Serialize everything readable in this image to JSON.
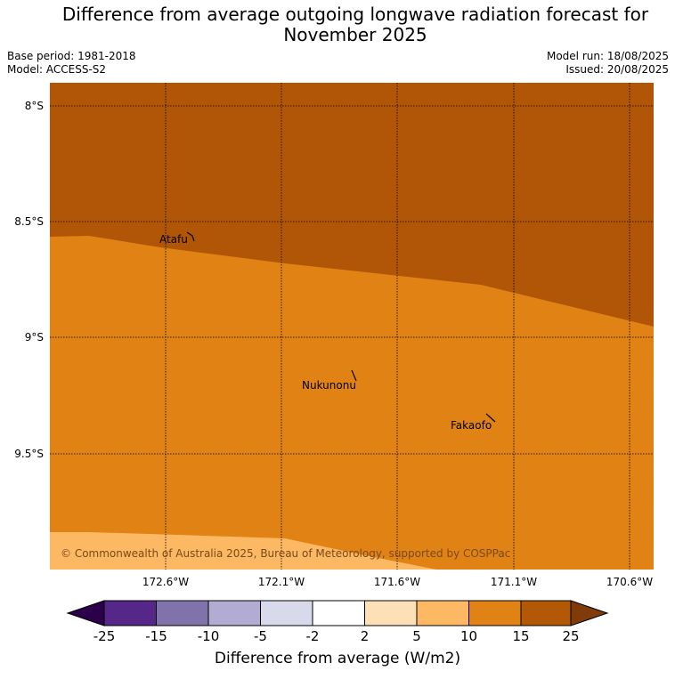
{
  "header": {
    "title_line1": "Difference from average outgoing longwave radiation forecast for",
    "title_line2": "November 2025",
    "base_period": "Base period: 1981-2018",
    "model": "Model: ACCESS-S2",
    "model_run": "Model run: 18/08/2025",
    "issued": "Issued: 20/08/2025"
  },
  "map": {
    "lon_labels": [
      "172.6°W",
      "172.1°W",
      "171.6°W",
      "171.1°W",
      "170.6°W"
    ],
    "lat_labels": [
      "8°S",
      "8.5°S",
      "9°S",
      "9.5°S"
    ],
    "places": [
      {
        "name": "Atafu"
      },
      {
        "name": "Nukunonu"
      },
      {
        "name": "Fakaofo"
      }
    ],
    "copyright": "© Commonwealth of Australia 2025, Bureau of Meteorology, supported by COSPPac",
    "region_colors": {
      "15_to_25": "#b05606",
      "10_to_15": "#e08214",
      "5_to_10": "#fdb863"
    }
  },
  "colorbar": {
    "ticks": [
      "-25",
      "-15",
      "-10",
      "-5",
      "-2",
      "2",
      "5",
      "10",
      "15",
      "25"
    ],
    "colors": [
      "#2d004b",
      "#542788",
      "#8073ac",
      "#b2abd2",
      "#d8daeb",
      "#ffffff",
      "#fee0b6",
      "#fdb863",
      "#e08214",
      "#b35806",
      "#7f3b08"
    ],
    "label": "Difference from average (W/m2)"
  }
}
